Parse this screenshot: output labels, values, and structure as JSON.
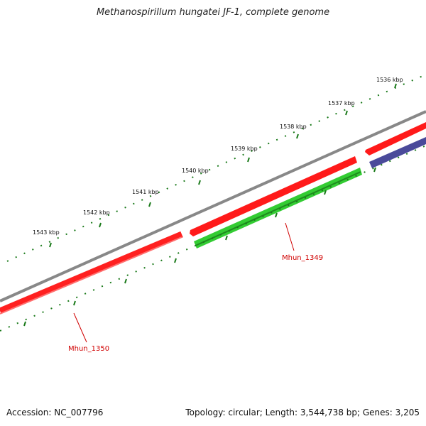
{
  "title": "Methanospirillum hungatei JF-1, complete genome",
  "accession": "Accession: NC_007796",
  "summary": "Topology: circular; Length: 3,544,738 bp; Genes: 3,205",
  "ticks": [
    {
      "label": "1536 kbp"
    },
    {
      "label": "1537 kbp"
    },
    {
      "label": "1538 kbp"
    },
    {
      "label": "1539 kbp"
    },
    {
      "label": "1540 kbp"
    },
    {
      "label": "1541 kbp"
    },
    {
      "label": "1542 kbp"
    },
    {
      "label": "1543 kbp"
    }
  ],
  "genes": [
    {
      "name": "Mhun_1349",
      "color": "#33cc33"
    },
    {
      "name": "Mhun_1350",
      "color": "#ff0000"
    }
  ],
  "colors": {
    "backbone": "#888888",
    "forward_gene": "#ff0000",
    "reverse_gene": "#33cc33",
    "other_gene": "#4a4a9a",
    "tick": "#1a7a1a",
    "label": "#d00000"
  }
}
